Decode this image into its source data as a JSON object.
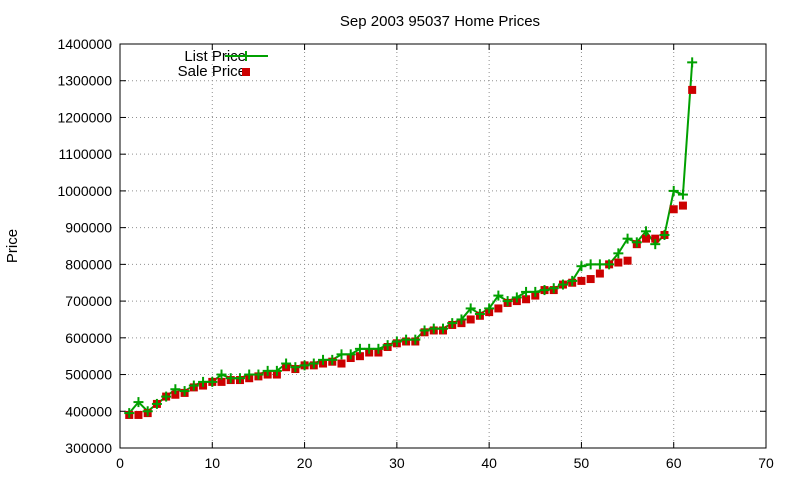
{
  "chart_data": {
    "type": "line",
    "title": "Sep 2003 95037 Home Prices",
    "xlabel": "",
    "ylabel": "Price",
    "xlim": [
      0,
      70
    ],
    "ylim": [
      300000,
      1400000
    ],
    "x_ticks": [
      "0",
      "10",
      "20",
      "30",
      "40",
      "50",
      "60",
      "70"
    ],
    "y_ticks": [
      "300000",
      "400000",
      "500000",
      "600000",
      "700000",
      "800000",
      "900000",
      "1000000",
      "1100000",
      "1200000",
      "1300000",
      "1400000"
    ],
    "grid": true,
    "legend_position": "top-left",
    "colors": {
      "list": "#00a000",
      "sale": "#cc0000"
    },
    "series": [
      {
        "name": "List Price",
        "style": "line-plus",
        "x": [
          1,
          2,
          3,
          4,
          5,
          6,
          7,
          8,
          9,
          10,
          11,
          12,
          13,
          14,
          15,
          16,
          17,
          18,
          19,
          20,
          21,
          22,
          23,
          24,
          25,
          26,
          27,
          28,
          29,
          30,
          31,
          32,
          33,
          34,
          35,
          36,
          37,
          38,
          39,
          40,
          41,
          42,
          43,
          44,
          45,
          46,
          47,
          48,
          49,
          50,
          51,
          52,
          53,
          54,
          55,
          56,
          57,
          58,
          59,
          60,
          61,
          62
        ],
        "values": [
          395000,
          425000,
          400000,
          420000,
          440000,
          460000,
          455000,
          470000,
          480000,
          480000,
          500000,
          490000,
          490000,
          500000,
          500000,
          510000,
          510000,
          530000,
          520000,
          525000,
          530000,
          540000,
          540000,
          555000,
          555000,
          570000,
          570000,
          570000,
          580000,
          590000,
          595000,
          595000,
          620000,
          625000,
          625000,
          640000,
          650000,
          680000,
          665000,
          680000,
          715000,
          700000,
          710000,
          725000,
          725000,
          730000,
          735000,
          745000,
          755000,
          795000,
          800000,
          800000,
          800000,
          830000,
          870000,
          860000,
          890000,
          855000,
          880000,
          1000000,
          990000,
          1350000
        ]
      },
      {
        "name": "Sale Price",
        "style": "square",
        "x": [
          1,
          2,
          3,
          4,
          5,
          6,
          7,
          8,
          9,
          10,
          11,
          12,
          13,
          14,
          15,
          16,
          17,
          18,
          19,
          20,
          21,
          22,
          23,
          24,
          25,
          26,
          27,
          28,
          29,
          30,
          31,
          32,
          33,
          34,
          35,
          36,
          37,
          38,
          39,
          40,
          41,
          42,
          43,
          44,
          45,
          46,
          47,
          48,
          49,
          50,
          51,
          52,
          53,
          54,
          55,
          56,
          57,
          58,
          59,
          60,
          61,
          62
        ],
        "values": [
          390000,
          390000,
          395000,
          420000,
          440000,
          445000,
          450000,
          465000,
          470000,
          480000,
          480000,
          485000,
          485000,
          490000,
          495000,
          500000,
          500000,
          520000,
          515000,
          525000,
          525000,
          530000,
          535000,
          530000,
          545000,
          550000,
          560000,
          560000,
          575000,
          585000,
          590000,
          590000,
          615000,
          620000,
          620000,
          635000,
          640000,
          650000,
          660000,
          670000,
          680000,
          695000,
          700000,
          705000,
          715000,
          730000,
          730000,
          745000,
          750000,
          755000,
          760000,
          775000,
          800000,
          805000,
          810000,
          855000,
          870000,
          870000,
          880000,
          950000,
          960000,
          1275000
        ]
      }
    ]
  }
}
